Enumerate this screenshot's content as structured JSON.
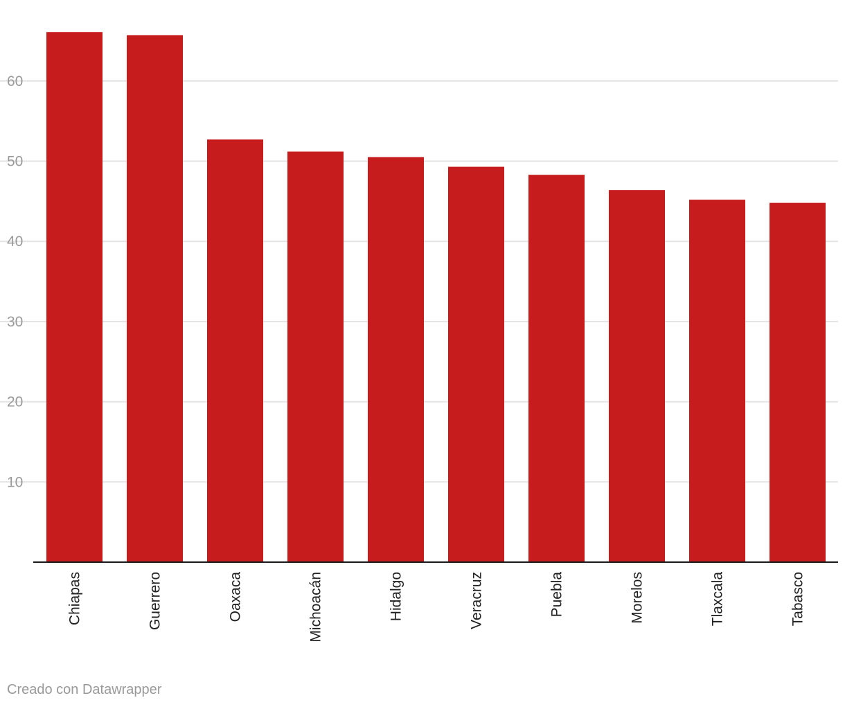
{
  "chart_data": {
    "type": "bar",
    "title": "",
    "xlabel": "",
    "ylabel": "",
    "categories": [
      "Chiapas",
      "Guerrero",
      "Oaxaca",
      "Michoacán",
      "Hidalgo",
      "Veracruz",
      "Puebla",
      "Morelos",
      "Tlaxcala",
      "Tabasco"
    ],
    "values": [
      66.1,
      65.7,
      52.7,
      51.2,
      50.5,
      49.3,
      48.3,
      46.4,
      45.2,
      44.8
    ],
    "ylim": [
      0,
      67.5
    ],
    "yticks": [
      10,
      20,
      30,
      40,
      50,
      60
    ],
    "grid": true,
    "bar_color": "#c61c1e"
  },
  "footer": {
    "credit": "Creado con Datawrapper"
  }
}
